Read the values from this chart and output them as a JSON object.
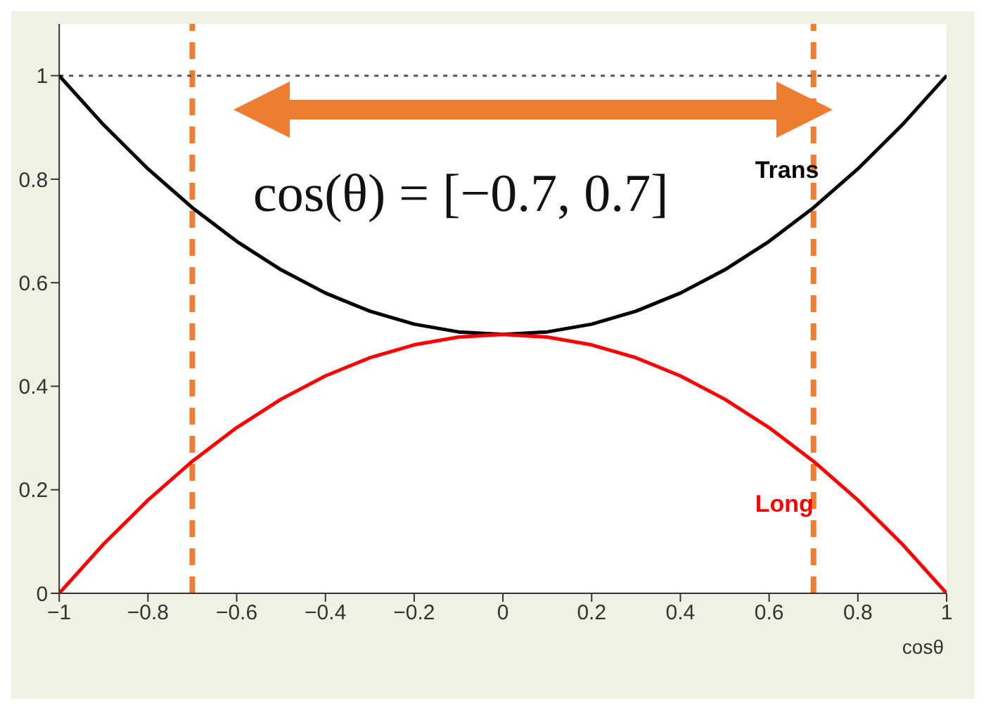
{
  "chart_data": {
    "type": "line",
    "xlabel": "cosθ",
    "x": [
      -1,
      -0.9,
      -0.8,
      -0.7,
      -0.6,
      -0.5,
      -0.4,
      -0.3,
      -0.2,
      -0.1,
      0,
      0.1,
      0.2,
      0.3,
      0.4,
      0.5,
      0.6,
      0.7,
      0.8,
      0.9,
      1
    ],
    "series": [
      {
        "name": "Trans",
        "color": "#000000",
        "values": [
          1,
          0.905,
          0.82,
          0.745,
          0.68,
          0.625,
          0.58,
          0.545,
          0.52,
          0.505,
          0.5,
          0.505,
          0.52,
          0.545,
          0.58,
          0.625,
          0.68,
          0.745,
          0.82,
          0.905,
          1
        ]
      },
      {
        "name": "Long",
        "color": "#ff0000",
        "values": [
          0,
          0.095,
          0.18,
          0.255,
          0.32,
          0.375,
          0.42,
          0.455,
          0.48,
          0.495,
          0.5,
          0.495,
          0.48,
          0.455,
          0.42,
          0.375,
          0.32,
          0.255,
          0.18,
          0.095,
          0
        ]
      }
    ],
    "xlim": [
      -1,
      1
    ],
    "xticks": [
      {
        "value": -1,
        "label": "−1"
      },
      {
        "value": -0.8,
        "label": "−0.8"
      },
      {
        "value": -0.6,
        "label": "−0.6"
      },
      {
        "value": -0.4,
        "label": "−0.4"
      },
      {
        "value": -0.2,
        "label": "−0.2"
      },
      0,
      0.2,
      0.4,
      0.6,
      0.8,
      1
    ],
    "ylim": [
      0,
      1.1
    ],
    "yticks": [
      0,
      0.2,
      0.4,
      0.6,
      0.8,
      1
    ],
    "ref_lines": [
      {
        "axis": "x",
        "value": -0.7,
        "color": "#ed7d31",
        "line_style": "dashed"
      },
      {
        "axis": "x",
        "value": 0.7,
        "color": "#ed7d31",
        "line_style": "dashed"
      },
      {
        "axis": "y",
        "value": 1,
        "color": "#555555",
        "line_style": "dotted"
      }
    ],
    "annotations": [
      "cos(θ) = [−0.7, 0.7]"
    ],
    "grid": false,
    "legend": false,
    "marker": "none",
    "line_style": "solid"
  }
}
